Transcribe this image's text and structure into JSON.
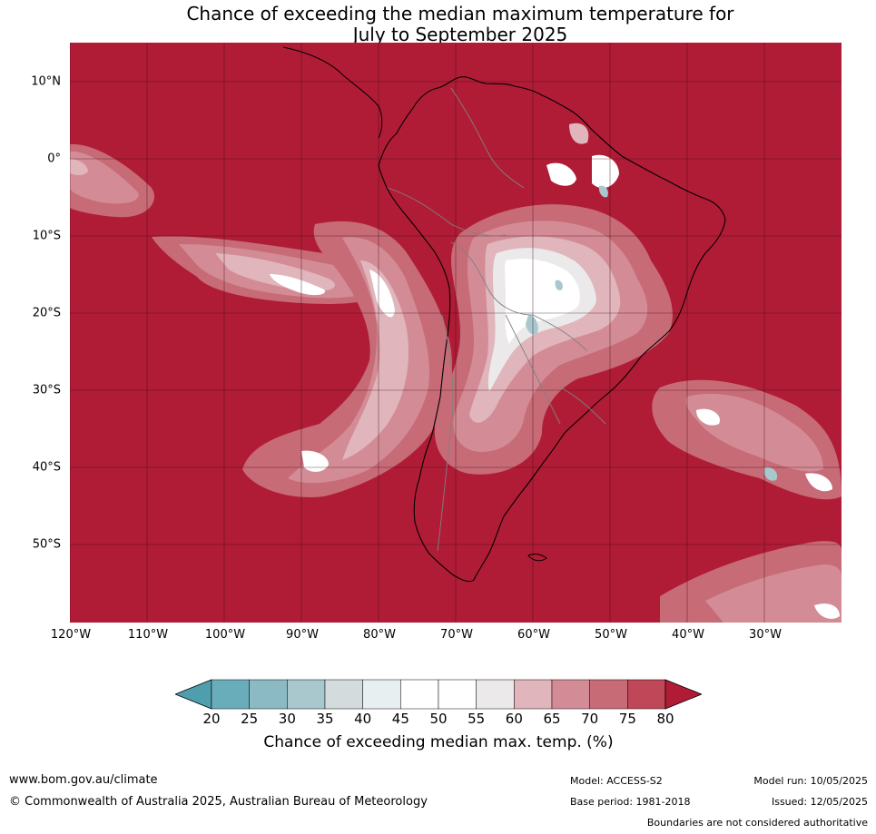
{
  "title": {
    "line1": "Chance of exceeding the median maximum temperature for",
    "line2": "July to September 2025"
  },
  "map": {
    "latitude_labels": [
      "10°N",
      "0°",
      "10°S",
      "20°S",
      "30°S",
      "40°S",
      "50°S"
    ],
    "longitude_labels": [
      "120°W",
      "110°W",
      "100°W",
      "90°W",
      "80°W",
      "70°W",
      "60°W",
      "50°W",
      "40°W",
      "30°W"
    ],
    "background_color": "#b01c36"
  },
  "colorbar": {
    "ticks": [
      "20",
      "25",
      "30",
      "35",
      "40",
      "45",
      "50",
      "55",
      "60",
      "65",
      "70",
      "75",
      "80"
    ],
    "colors": [
      "#4f9eae",
      "#6aadba",
      "#8bb9c4",
      "#a9c8cd",
      "#d3dbdc",
      "#e8eff0",
      "#ffffff",
      "#ffffff",
      "#ebe9ea",
      "#e0b5bb",
      "#d38c96",
      "#c76b77",
      "#bf4757",
      "#b01c36"
    ],
    "label": "Chance of exceeding median max. temp. (%)"
  },
  "footer": {
    "url": "www.bom.gov.au/climate",
    "copyright": "© Commonwealth of Australia 2025, Australian Bureau of Meteorology",
    "model": "Model: ACCESS-S2",
    "base_period": "Base period: 1981-2018",
    "model_run": "Model run: 10/05/2025",
    "issued": "Issued: 12/05/2025",
    "disclaimer": "Boundaries are not considered authoritative"
  }
}
